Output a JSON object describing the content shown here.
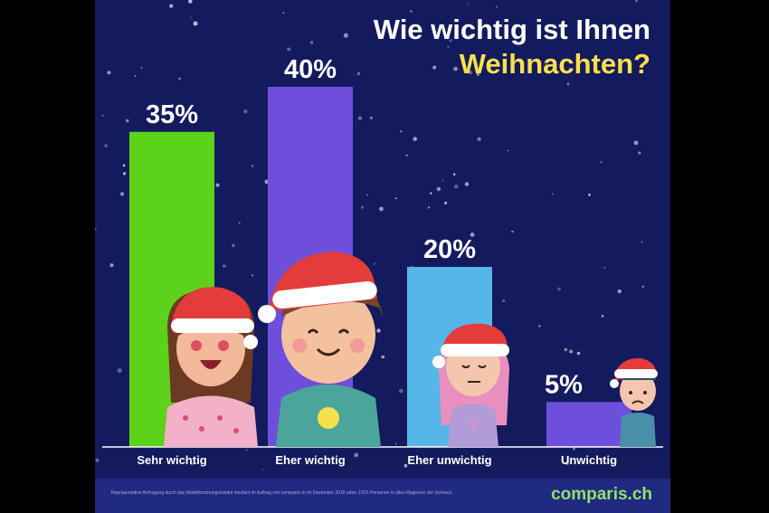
{
  "title_line1": "Wie wichtig ist Ihnen",
  "title_line2": "Weihnachten?",
  "footer": {
    "source": "Repräsentative Befragung durch das Marktforschungsinstitut innofact im Auftrag von comparis.ch im Dezember 2019 unter 1'021 Personen in allen Regionen der Schweiz.",
    "logo": "comparis.ch"
  },
  "colors": {
    "background": "#141a5e",
    "title_accent": "#f7e14a",
    "logo": "#8fe36b"
  },
  "chart_data": {
    "type": "bar",
    "categories": [
      "Sehr wichtig",
      "Eher wichtig",
      "Eher unwichtig",
      "Unwichtig"
    ],
    "values": [
      35,
      40,
      20,
      5
    ],
    "value_labels": [
      "35%",
      "40%",
      "20%",
      "5%"
    ],
    "colors": [
      "#5dd21b",
      "#6d4fdc",
      "#57b6e8",
      "#6d4fdc"
    ],
    "ylim": [
      0,
      40
    ],
    "grid": false,
    "title": "Wie wichtig ist Ihnen Weihnachten?"
  }
}
